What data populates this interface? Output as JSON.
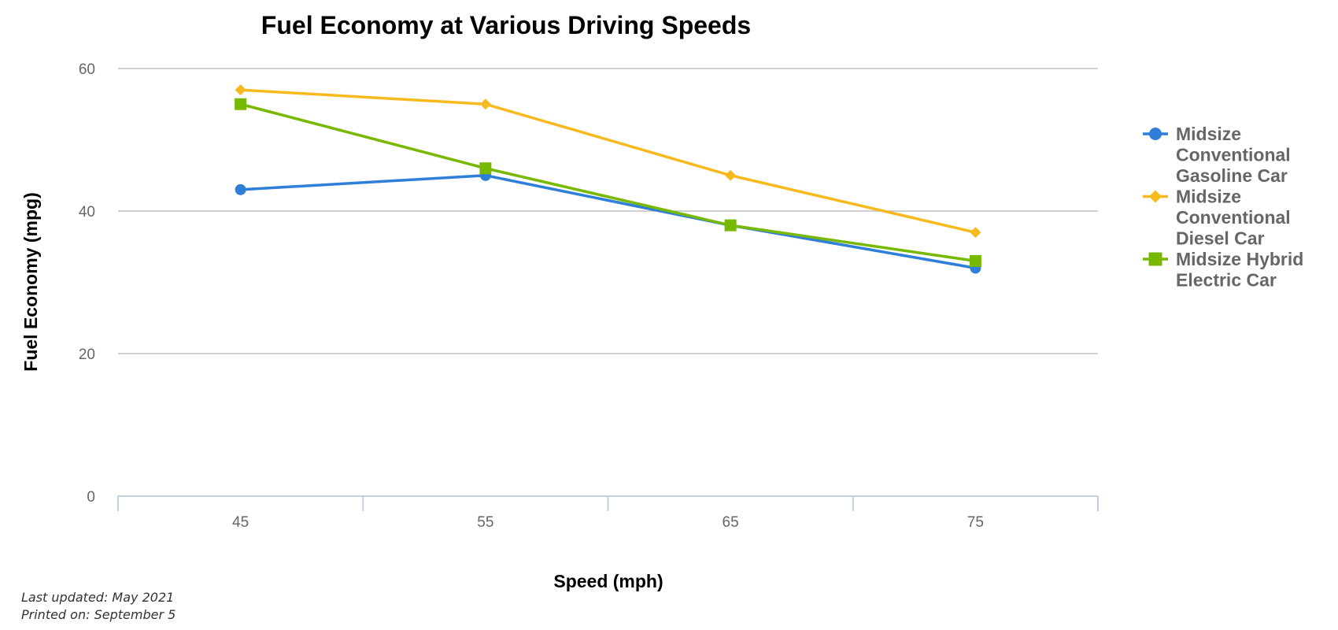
{
  "chart_data": {
    "type": "line",
    "title": "Fuel Economy at Various Driving Speeds",
    "xlabel": "Speed (mph)",
    "ylabel": "Fuel Economy (mpg)",
    "categories": [
      "45",
      "55",
      "65",
      "75"
    ],
    "ylim": [
      0,
      60
    ],
    "yticks": [
      0,
      20,
      40,
      60
    ],
    "grid": true,
    "legend_position": "right",
    "series": [
      {
        "name_lines": [
          "Midsize",
          "Conventional",
          "Gasoline Car"
        ],
        "color": "#2f7ed8",
        "marker": "circle",
        "values": [
          43,
          45,
          38,
          32
        ]
      },
      {
        "name_lines": [
          "Midsize",
          "Conventional",
          "Diesel Car"
        ],
        "color": "#f7ba1e",
        "marker": "diamond",
        "values": [
          57,
          55,
          45,
          37
        ]
      },
      {
        "name_lines": [
          "Midsize Hybrid",
          "Electric Car"
        ],
        "color": "#77b800",
        "marker": "square",
        "values": [
          55,
          46,
          38,
          33
        ]
      }
    ]
  },
  "footer": {
    "updated": "Last updated: May 2021",
    "printed": "Printed on: September 5"
  }
}
